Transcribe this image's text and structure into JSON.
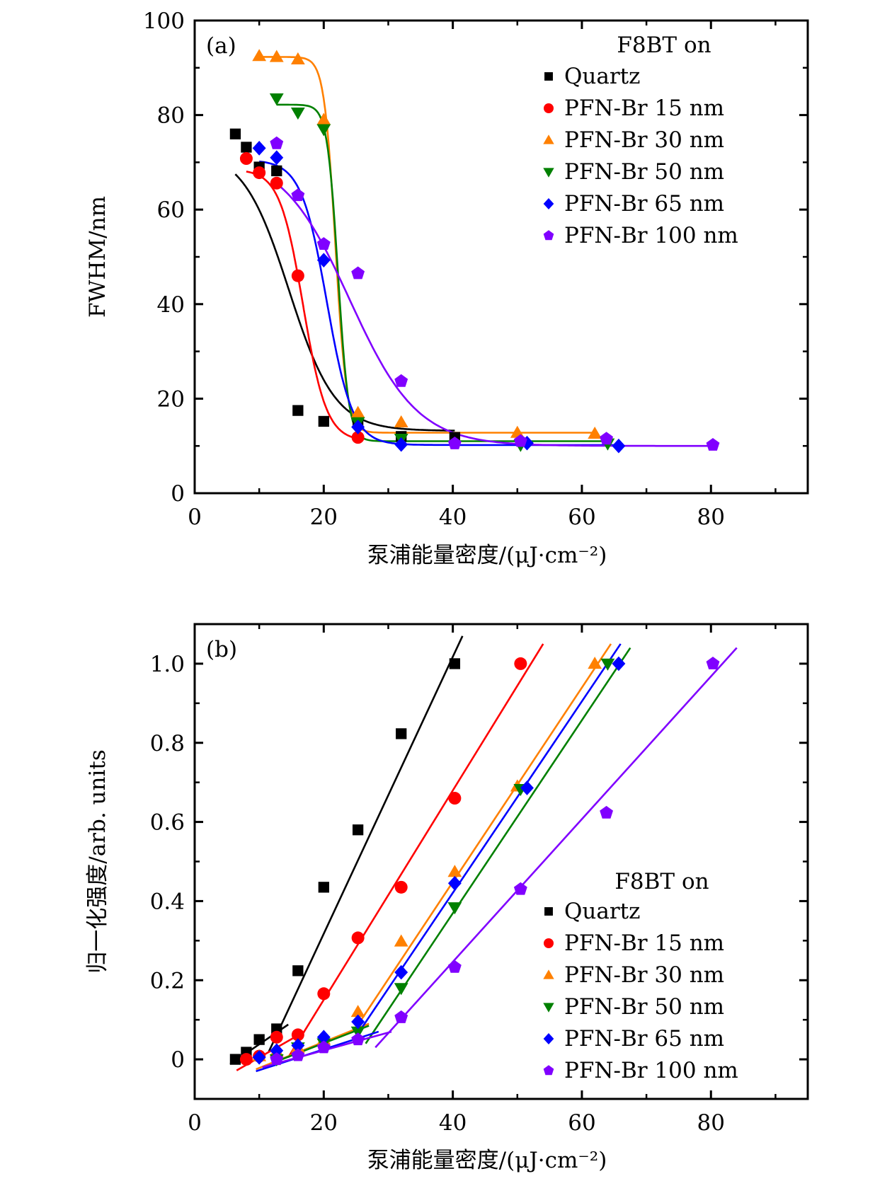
{
  "chart_data": [
    {
      "type": "scatter",
      "panel_label": "(a)",
      "title": "",
      "xlabel": "泵浦能量密度/(μJ·cm⁻²)",
      "ylabel": "FWHM/nm",
      "xlim": [
        0,
        95
      ],
      "ylim": [
        0,
        100
      ],
      "xticks": [
        0,
        20,
        40,
        60,
        80
      ],
      "xminor": [
        10,
        30,
        50,
        70,
        90
      ],
      "yticks": [
        0,
        20,
        40,
        60,
        80,
        100
      ],
      "yminor": [
        10,
        30,
        50,
        70,
        90
      ],
      "grid": false,
      "legend": {
        "title": "F8BT on",
        "placement": "top-right"
      },
      "fit": "sigmoid",
      "series": [
        {
          "name": "Quartz",
          "color": "#000000",
          "marker": "square",
          "x": [
            6.3,
            8,
            10,
            12.7,
            16,
            20,
            25.3,
            32,
            40.3
          ],
          "y": [
            76,
            73.2,
            69,
            68.2,
            17.5,
            15.2,
            15,
            12,
            11.8
          ],
          "fit_params": {
            "top": 72.8,
            "bottom": 13.2,
            "x0": 14.6,
            "k": 0.28,
            "xstart": 6.3,
            "xend": 40.3
          }
        },
        {
          "name": "PFN-Br 15 nm",
          "color": "#ff0000",
          "marker": "circle",
          "x": [
            8,
            10,
            12.7,
            16,
            25.3
          ],
          "y": [
            70.8,
            67.8,
            65.6,
            46,
            11.8
          ],
          "fit_params": {
            "top": 68.5,
            "bottom": 11,
            "x0": 16.8,
            "k": 0.55,
            "xstart": 8,
            "xend": 25.3
          }
        },
        {
          "name": "PFN-Br 30 nm",
          "color": "#ff8000",
          "marker": "triangle-up",
          "x": [
            10,
            12.7,
            16,
            20,
            25.3,
            32,
            50,
            62
          ],
          "y": [
            92.5,
            92.3,
            91.8,
            79,
            17,
            15,
            12.8,
            12.6
          ],
          "fit_params": {
            "top": 92.3,
            "bottom": 12.8,
            "x0": 21.8,
            "k": 1.15,
            "xstart": 9.8,
            "xend": 62
          }
        },
        {
          "name": "PFN-Br 50 nm",
          "color": "#008000",
          "marker": "triangle-down",
          "x": [
            12.7,
            16,
            20,
            25.3,
            32,
            50.5,
            64
          ],
          "y": [
            83.5,
            80.5,
            77,
            15,
            11.5,
            10.2,
            10.5
          ],
          "fit_params": {
            "top": 82.2,
            "bottom": 11,
            "x0": 22.2,
            "k": 1.2,
            "xstart": 12.7,
            "xend": 64
          }
        },
        {
          "name": "PFN-Br 65 nm",
          "color": "#0000ff",
          "marker": "diamond",
          "x": [
            10,
            12.7,
            20,
            25.3,
            32,
            51.5,
            65.7
          ],
          "y": [
            73,
            71,
            49.3,
            14,
            10.3,
            10.6,
            10
          ],
          "fit_params": {
            "top": 70.5,
            "bottom": 10.2,
            "x0": 20.5,
            "k": 0.5,
            "xstart": 10,
            "xend": 65.7
          }
        },
        {
          "name": "PFN-Br 100 nm",
          "color": "#8000ff",
          "marker": "pentagon",
          "x": [
            12.7,
            16,
            20,
            25.3,
            32,
            40.3,
            50.5,
            63.8,
            80.3
          ],
          "y": [
            74,
            63,
            52.7,
            46.5,
            23.7,
            10.5,
            11,
            11.5,
            10.2
          ],
          "fit_params": {
            "top": 72,
            "bottom": 10,
            "x0": 24,
            "k": 0.19,
            "xstart": 12.7,
            "xend": 80.3
          }
        }
      ]
    },
    {
      "type": "scatter",
      "panel_label": "(b)",
      "title": "",
      "xlabel": "泵浦能量密度/(μJ·cm⁻²)",
      "ylabel": "归一化强度/arb. units",
      "xlim": [
        0,
        95
      ],
      "ylim": [
        -0.1,
        1.1
      ],
      "xticks": [
        0,
        20,
        40,
        60,
        80
      ],
      "xminor": [
        10,
        30,
        50,
        70,
        90
      ],
      "yticks": [
        0,
        0.2,
        0.4,
        0.6,
        0.8,
        1.0
      ],
      "ytick_labels": [
        "0",
        "0.2",
        "0.4",
        "0.6",
        "0.8",
        "1.0"
      ],
      "yminor": [
        0.1,
        0.3,
        0.5,
        0.7,
        0.9
      ],
      "grid": false,
      "legend": {
        "title": "F8BT on",
        "placement": "bottom-right"
      },
      "fit": "linear-segments",
      "series": [
        {
          "name": "Quartz",
          "color": "#000000",
          "marker": "square",
          "x": [
            6.3,
            8,
            10,
            12.7,
            16,
            20,
            25.3,
            32,
            40.3
          ],
          "y": [
            0,
            0.018,
            0.05,
            0.077,
            0.224,
            0.435,
            0.58,
            0.823,
            1.0
          ],
          "fit_lines": [
            [
              [
                5.5,
                -0.012
              ],
              [
                14.5,
                0.088
              ]
            ],
            [
              [
                11.5,
                0.02
              ],
              [
                41.5,
                1.07
              ]
            ]
          ]
        },
        {
          "name": "PFN-Br 15 nm",
          "color": "#ff0000",
          "marker": "circle",
          "x": [
            8,
            10,
            12.7,
            16,
            20,
            25.3,
            32,
            40.3,
            50.5
          ],
          "y": [
            0,
            0.008,
            0.056,
            0.062,
            0.166,
            0.307,
            0.435,
            0.66,
            1.0
          ],
          "fit_lines": [
            [
              [
                6.5,
                -0.028
              ],
              [
                17,
                0.07
              ]
            ],
            [
              [
                14.5,
                0.005
              ],
              [
                54,
                1.05
              ]
            ]
          ]
        },
        {
          "name": "PFN-Br 30 nm",
          "color": "#ff8000",
          "marker": "triangle-up",
          "x": [
            10,
            12.7,
            16,
            20,
            25.3,
            32,
            40.3,
            50,
            62
          ],
          "y": [
            0.008,
            0.02,
            0.03,
            0.05,
            0.12,
            0.298,
            0.474,
            0.69,
            1.0
          ],
          "fit_lines": [
            [
              [
                9.5,
                -0.025
              ],
              [
                27,
                0.09
              ]
            ],
            [
              [
                25,
                0.08
              ],
              [
                64.5,
                1.05
              ]
            ]
          ]
        },
        {
          "name": "PFN-Br 50 nm",
          "color": "#008000",
          "marker": "triangle-down",
          "x": [
            12.7,
            16,
            20,
            25.3,
            32,
            40.3,
            50.5,
            64
          ],
          "y": [
            0,
            0.03,
            0.04,
            0.07,
            0.18,
            0.384,
            0.683,
            1.0
          ],
          "fit_lines": [
            [
              [
                12.7,
                -0.005
              ],
              [
                27,
                0.085
              ]
            ],
            [
              [
                26.5,
                0.04
              ],
              [
                67.5,
                1.04
              ]
            ]
          ]
        },
        {
          "name": "PFN-Br 65 nm",
          "color": "#0000ff",
          "marker": "diamond",
          "x": [
            10,
            12.7,
            16,
            20,
            25.3,
            32,
            40.3,
            51.5,
            65.7
          ],
          "y": [
            0.005,
            0.022,
            0.035,
            0.056,
            0.095,
            0.22,
            0.445,
            0.686,
            1.0
          ],
          "fit_lines": [
            [
              [
                9.5,
                -0.03
              ],
              [
                28.5,
                0.07
              ]
            ],
            [
              [
                25.5,
                0.07
              ],
              [
                66,
                1.05
              ]
            ]
          ]
        },
        {
          "name": "PFN-Br 100 nm",
          "color": "#8000ff",
          "marker": "pentagon",
          "x": [
            12.7,
            16,
            20,
            25.3,
            32,
            40.3,
            50.5,
            63.8,
            80.3
          ],
          "y": [
            0,
            0.01,
            0.03,
            0.05,
            0.106,
            0.233,
            0.43,
            0.623,
            1.0
          ],
          "fit_lines": [
            [
              [
                10.5,
                -0.02
              ],
              [
                30.5,
                0.07
              ]
            ],
            [
              [
                28,
                0.03
              ],
              [
                84,
                1.04
              ]
            ]
          ]
        }
      ]
    }
  ]
}
